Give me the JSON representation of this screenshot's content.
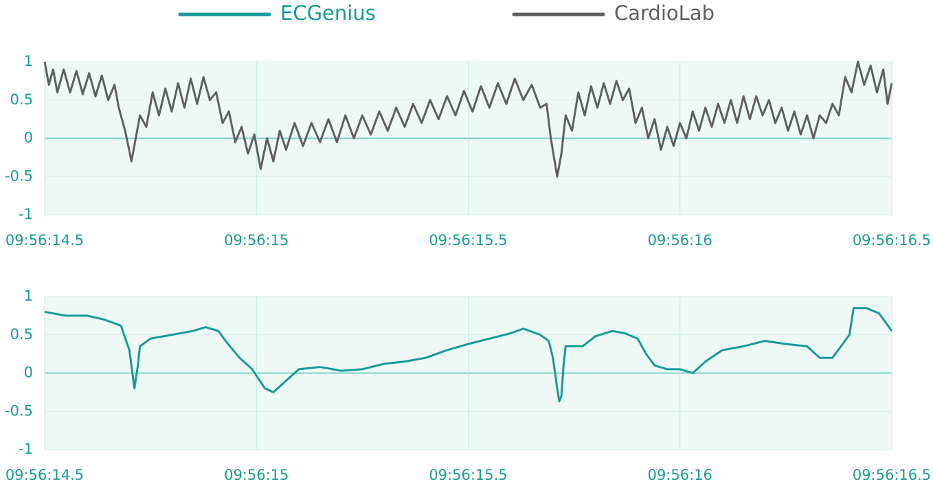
{
  "chart_data": [
    {
      "type": "line",
      "x": [
        14.5,
        14.51,
        14.52,
        14.53,
        14.545,
        14.56,
        14.575,
        14.59,
        14.605,
        14.62,
        14.635,
        14.65,
        14.665,
        14.675,
        14.69,
        14.705,
        14.715,
        14.725,
        14.74,
        14.755,
        14.77,
        14.785,
        14.8,
        14.815,
        14.83,
        14.845,
        14.86,
        14.875,
        14.89,
        14.905,
        14.92,
        14.935,
        14.95,
        14.965,
        14.98,
        14.995,
        15.01,
        15.025,
        15.04,
        15.055,
        15.07,
        15.09,
        15.11,
        15.13,
        15.15,
        15.17,
        15.19,
        15.21,
        15.23,
        15.25,
        15.27,
        15.29,
        15.31,
        15.33,
        15.35,
        15.37,
        15.39,
        15.41,
        15.43,
        15.45,
        15.47,
        15.49,
        15.51,
        15.53,
        15.55,
        15.57,
        15.59,
        15.61,
        15.63,
        15.65,
        15.67,
        15.685,
        15.695,
        15.71,
        15.72,
        15.73,
        15.745,
        15.76,
        15.775,
        15.79,
        15.805,
        15.82,
        15.835,
        15.85,
        15.865,
        15.88,
        15.895,
        15.91,
        15.925,
        15.94,
        15.955,
        15.97,
        15.985,
        16.0,
        16.015,
        16.03,
        16.045,
        16.06,
        16.075,
        16.09,
        16.105,
        16.12,
        16.135,
        16.15,
        16.165,
        16.18,
        16.195,
        16.21,
        16.225,
        16.24,
        16.255,
        16.27,
        16.285,
        16.3,
        16.315,
        16.33,
        16.345,
        16.36,
        16.375,
        16.39,
        16.405,
        16.42,
        16.435,
        16.45,
        16.465,
        16.48,
        16.49,
        16.5
      ],
      "series": [
        {
          "name": "CardioLab",
          "color": "#5f5f5f",
          "values": [
            1.0,
            0.7,
            0.9,
            0.6,
            0.9,
            0.6,
            0.88,
            0.58,
            0.85,
            0.55,
            0.82,
            0.5,
            0.7,
            0.4,
            0.1,
            -0.3,
            0.0,
            0.3,
            0.15,
            0.6,
            0.3,
            0.65,
            0.35,
            0.72,
            0.4,
            0.78,
            0.45,
            0.8,
            0.5,
            0.6,
            0.2,
            0.35,
            -0.05,
            0.15,
            -0.2,
            0.05,
            -0.4,
            0.0,
            -0.3,
            0.1,
            -0.15,
            0.2,
            -0.1,
            0.2,
            -0.05,
            0.25,
            -0.05,
            0.3,
            0.0,
            0.3,
            0.05,
            0.35,
            0.1,
            0.4,
            0.15,
            0.45,
            0.2,
            0.5,
            0.25,
            0.55,
            0.3,
            0.62,
            0.35,
            0.68,
            0.4,
            0.72,
            0.45,
            0.78,
            0.5,
            0.7,
            0.4,
            0.45,
            0.0,
            -0.5,
            -0.2,
            0.3,
            0.1,
            0.6,
            0.3,
            0.68,
            0.4,
            0.72,
            0.45,
            0.75,
            0.5,
            0.65,
            0.2,
            0.4,
            0.0,
            0.25,
            -0.15,
            0.15,
            -0.1,
            0.2,
            0.0,
            0.35,
            0.1,
            0.4,
            0.15,
            0.45,
            0.2,
            0.5,
            0.2,
            0.55,
            0.25,
            0.55,
            0.3,
            0.5,
            0.2,
            0.4,
            0.1,
            0.35,
            0.05,
            0.3,
            0.0,
            0.3,
            0.2,
            0.45,
            0.3,
            0.8,
            0.6,
            1.0,
            0.7,
            0.95,
            0.6,
            0.9,
            0.45,
            0.72
          ]
        }
      ],
      "xlim": [
        14.5,
        16.5
      ],
      "xticks": [
        {
          "value": 14.5,
          "label": "09:56:14.5"
        },
        {
          "value": 15,
          "label": "09:56:15"
        },
        {
          "value": 15.5,
          "label": "09:56:15.5"
        },
        {
          "value": 16,
          "label": "09:56:16"
        },
        {
          "value": 16.5,
          "label": "09:56:16.5"
        }
      ],
      "ylim": [
        -1,
        1
      ],
      "yticks": [
        1,
        0.5,
        0,
        -0.5,
        -1
      ],
      "grid": true
    },
    {
      "type": "line",
      "x": [
        14.5,
        14.55,
        14.6,
        14.64,
        14.68,
        14.7,
        14.712,
        14.72,
        14.725,
        14.75,
        14.8,
        14.85,
        14.88,
        14.91,
        14.93,
        14.96,
        14.99,
        15.02,
        15.04,
        15.06,
        15.1,
        15.15,
        15.2,
        15.25,
        15.3,
        15.35,
        15.4,
        15.45,
        15.5,
        15.55,
        15.6,
        15.63,
        15.67,
        15.69,
        15.7,
        15.71,
        15.715,
        15.72,
        15.725,
        15.73,
        15.77,
        15.8,
        15.84,
        15.87,
        15.9,
        15.92,
        15.94,
        15.97,
        16.0,
        16.03,
        16.06,
        16.1,
        16.15,
        16.2,
        16.25,
        16.3,
        16.33,
        16.36,
        16.38,
        16.4,
        16.41,
        16.44,
        16.47,
        16.5
      ],
      "series": [
        {
          "name": "ECGenius",
          "color": "#17999a",
          "values": [
            0.8,
            0.75,
            0.75,
            0.7,
            0.62,
            0.3,
            -0.2,
            0.1,
            0.35,
            0.45,
            0.5,
            0.55,
            0.6,
            0.55,
            0.4,
            0.2,
            0.05,
            -0.2,
            -0.25,
            -0.15,
            0.05,
            0.08,
            0.03,
            0.05,
            0.12,
            0.15,
            0.2,
            0.3,
            0.38,
            0.45,
            0.52,
            0.58,
            0.5,
            0.42,
            0.2,
            -0.2,
            -0.37,
            -0.3,
            0.1,
            0.35,
            0.35,
            0.48,
            0.55,
            0.52,
            0.45,
            0.25,
            0.1,
            0.05,
            0.05,
            0.0,
            0.15,
            0.3,
            0.35,
            0.42,
            0.38,
            0.35,
            0.2,
            0.2,
            0.35,
            0.5,
            0.85,
            0.85,
            0.78,
            0.55
          ]
        }
      ],
      "xlim": [
        14.5,
        16.5
      ],
      "xticks": [
        {
          "value": 14.5,
          "label": "09:56:14.5"
        },
        {
          "value": 15,
          "label": "09:56:15"
        },
        {
          "value": 15.5,
          "label": "09:56:15.5"
        },
        {
          "value": 16,
          "label": "09:56:16"
        },
        {
          "value": 16.5,
          "label": "09:56:16.5"
        }
      ],
      "ylim": [
        -1,
        1
      ],
      "yticks": [
        1,
        0.5,
        0,
        -0.5,
        -1
      ],
      "grid": true
    }
  ]
}
